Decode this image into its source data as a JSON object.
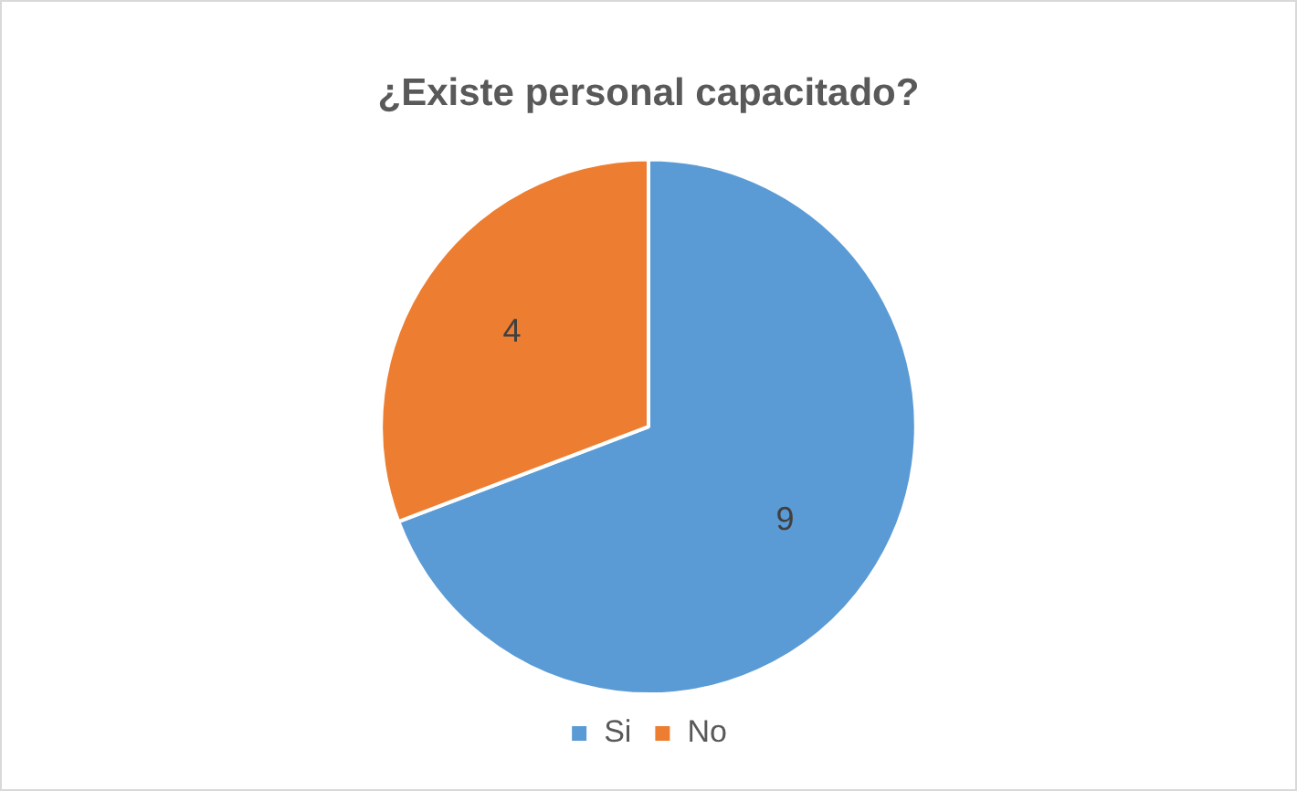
{
  "chart_data": {
    "type": "pie",
    "title": "¿Existe personal capacitado?",
    "categories": [
      "Si",
      "No"
    ],
    "values": [
      9,
      4
    ],
    "colors": [
      "#5b9bd5",
      "#ed7d31"
    ],
    "data_labels": true,
    "legend": "bottom"
  }
}
